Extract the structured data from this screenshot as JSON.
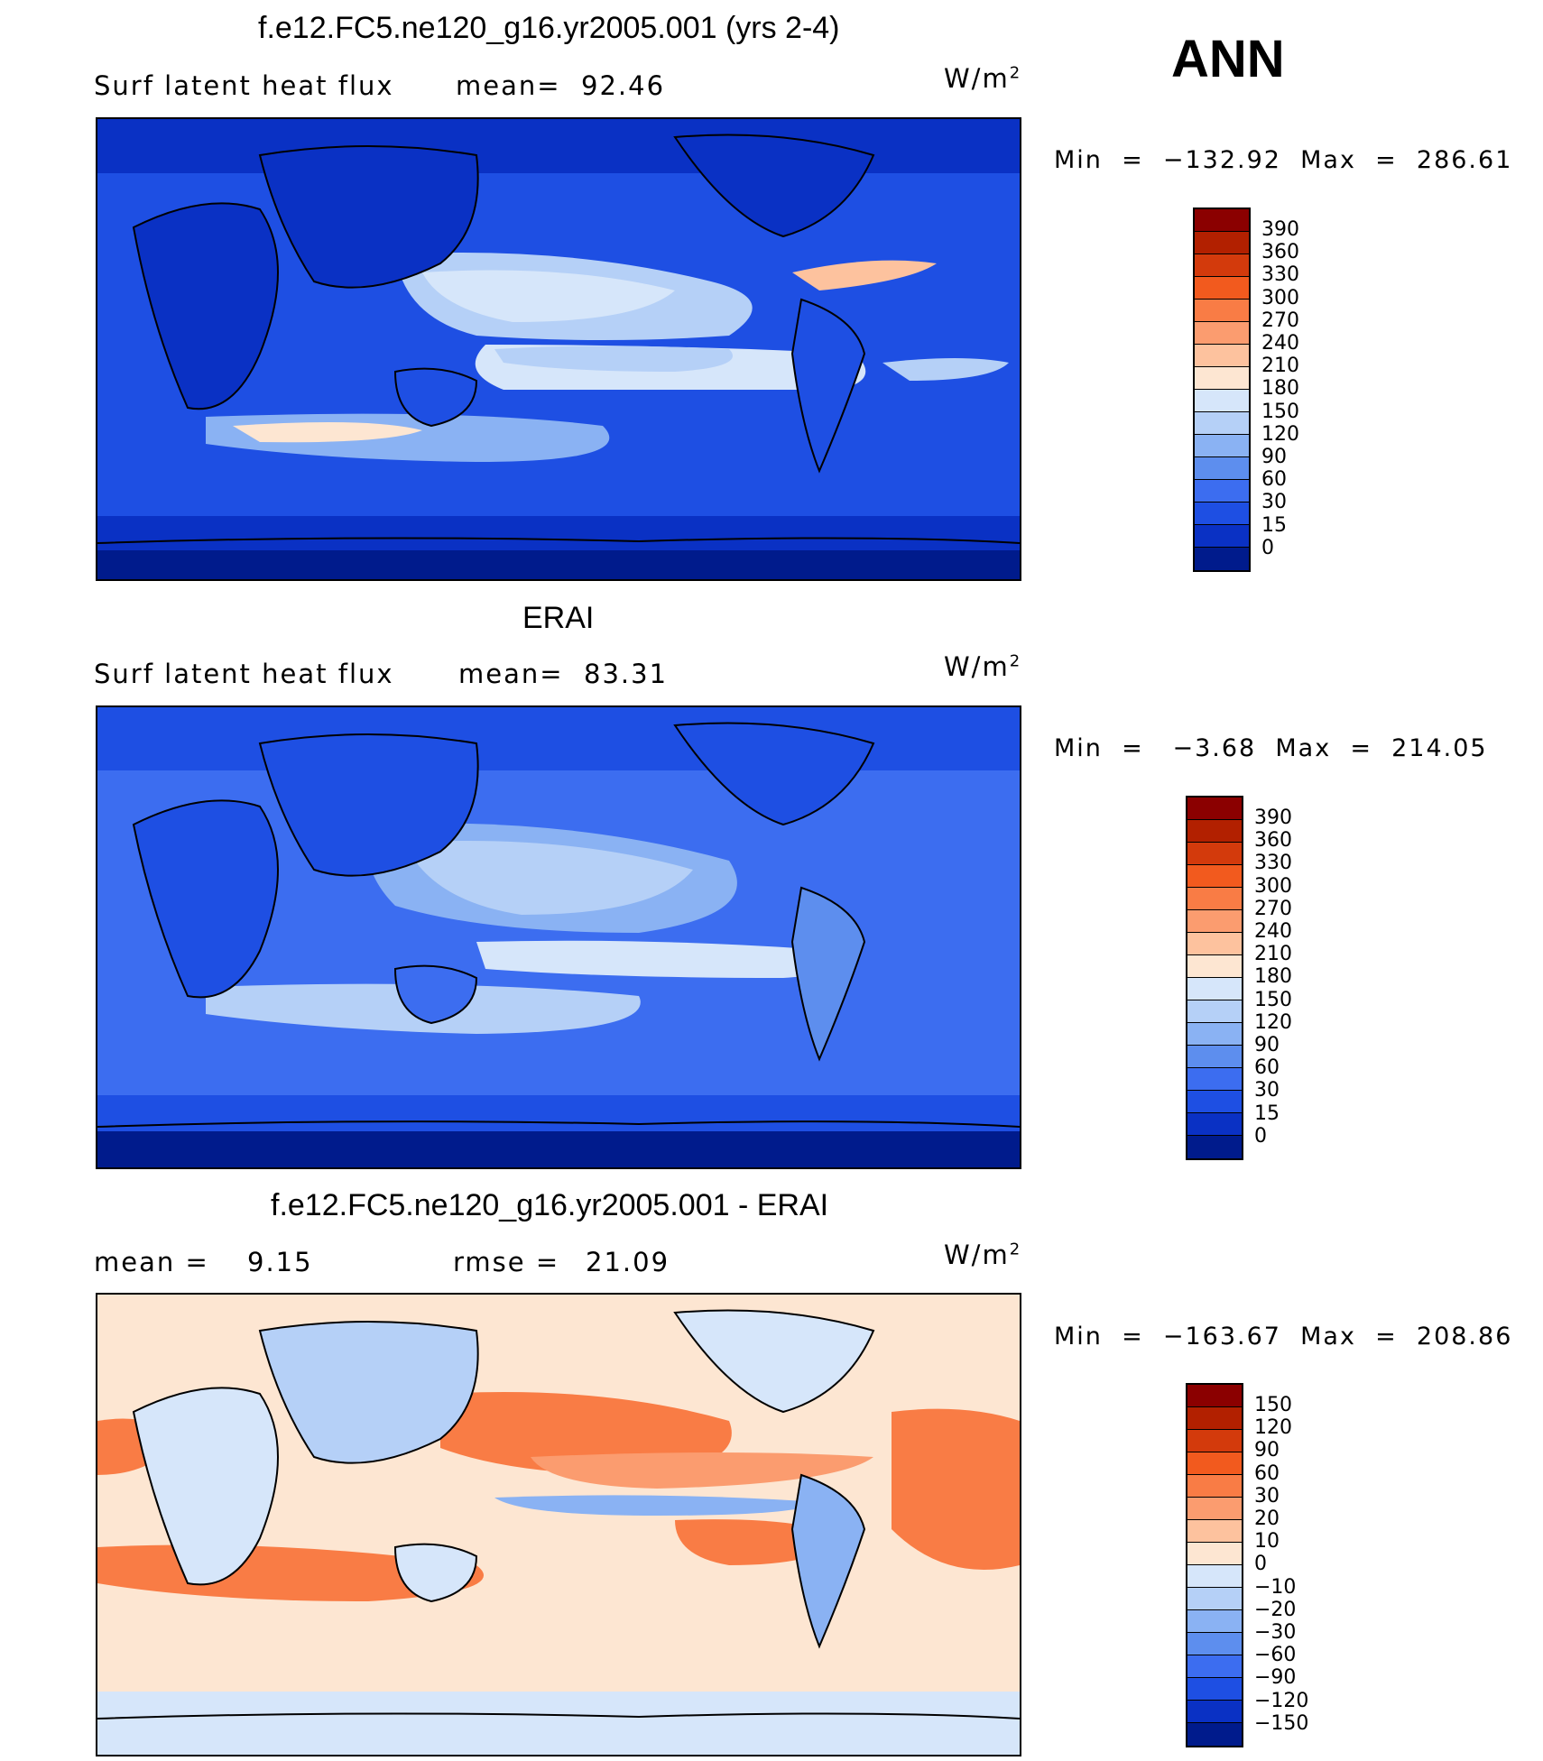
{
  "season": "ANN",
  "units_base": "W/m",
  "units_exp": "2",
  "panels": [
    {
      "title": "f.e12.FC5.ne120_g16.yr2005.001 (yrs 2-4)",
      "left_label": "Surf  latent  heat  flux",
      "stat_label": "mean=",
      "stat_value": "92.46",
      "minmax": "Min  =  −132.92  Max  =  286.61",
      "levels": [
        "390",
        "360",
        "330",
        "300",
        "270",
        "240",
        "210",
        "180",
        "150",
        "120",
        "90",
        "60",
        "30",
        "15",
        "0"
      ],
      "colors": [
        "#8b0000",
        "#b22000",
        "#d33a0c",
        "#f25a1e",
        "#f97c45",
        "#fb9c6f",
        "#fdc29e",
        "#fde6d2",
        "#d6e6fa",
        "#b5d0f7",
        "#8ab2f3",
        "#5d8eee",
        "#3c6df0",
        "#1e4fe3",
        "#0a31c4",
        "#001b8c"
      ]
    },
    {
      "title": "ERAI",
      "left_label": "Surf  latent  heat  flux",
      "stat_label": "mean=",
      "stat_value": "83.31",
      "minmax": "Min  =   −3.68  Max  =  214.05",
      "levels": [
        "390",
        "360",
        "330",
        "300",
        "270",
        "240",
        "210",
        "180",
        "150",
        "120",
        "90",
        "60",
        "30",
        "15",
        "0"
      ],
      "colors": [
        "#8b0000",
        "#b22000",
        "#d33a0c",
        "#f25a1e",
        "#f97c45",
        "#fb9c6f",
        "#fdc29e",
        "#fde6d2",
        "#d6e6fa",
        "#b5d0f7",
        "#8ab2f3",
        "#5d8eee",
        "#3c6df0",
        "#1e4fe3",
        "#0a31c4",
        "#001b8c"
      ]
    },
    {
      "title": "f.e12.FC5.ne120_g16.yr2005.001 - ERAI",
      "left_label": "mean  =",
      "left_value": "9.15",
      "stat_label": "rmse  =",
      "stat_value": "21.09",
      "minmax": "Min  =  −163.67  Max  =  208.86",
      "levels": [
        "150",
        "120",
        "90",
        "60",
        "30",
        "20",
        "10",
        "0",
        "−10",
        "−20",
        "−30",
        "−60",
        "−90",
        "−120",
        "−150"
      ],
      "colors": [
        "#8b0000",
        "#b22000",
        "#d33a0c",
        "#f25a1e",
        "#f97c45",
        "#fb9c6f",
        "#fdc29e",
        "#fde6d2",
        "#d6e6fa",
        "#b5d0f7",
        "#8ab2f3",
        "#5d8eee",
        "#3c6df0",
        "#1e4fe3",
        "#0a31c4",
        "#001b8c"
      ]
    }
  ]
}
